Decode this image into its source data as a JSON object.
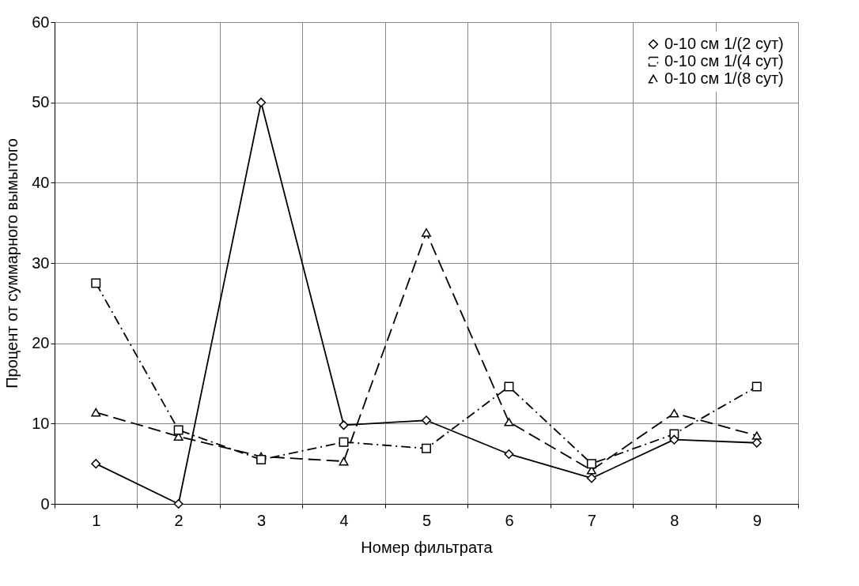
{
  "chart_data": {
    "type": "line",
    "xlabel": "Номер фильтрата",
    "ylabel": "Процент от суммарного вымытого",
    "categories": [
      "1",
      "2",
      "3",
      "4",
      "5",
      "6",
      "7",
      "8",
      "9"
    ],
    "series": [
      {
        "name": "0-10 см 1/(2 сут)",
        "color": "#000000",
        "marker": "diamond",
        "line_style": "solid",
        "values": [
          5.0,
          0.0,
          50.0,
          9.8,
          10.4,
          6.2,
          3.2,
          8.0,
          7.6
        ]
      },
      {
        "name": "0-10 см 1/(4 сут)",
        "color": "#000000",
        "marker": "square",
        "line_style": "dotted",
        "values": [
          27.5,
          9.2,
          5.5,
          7.7,
          6.9,
          14.6,
          5.0,
          8.7,
          14.6
        ]
      },
      {
        "name": "0-10 см 1/(8 сут)",
        "color": "#000000",
        "marker": "triangle",
        "line_style": "dashed",
        "values": [
          11.4,
          8.4,
          5.9,
          5.3,
          33.8,
          10.2,
          4.2,
          11.3,
          8.5
        ]
      }
    ],
    "ylim": [
      0,
      60
    ],
    "yticks": [
      0,
      10,
      20,
      30,
      40,
      50,
      60
    ],
    "grid": true,
    "legend": "top right"
  }
}
